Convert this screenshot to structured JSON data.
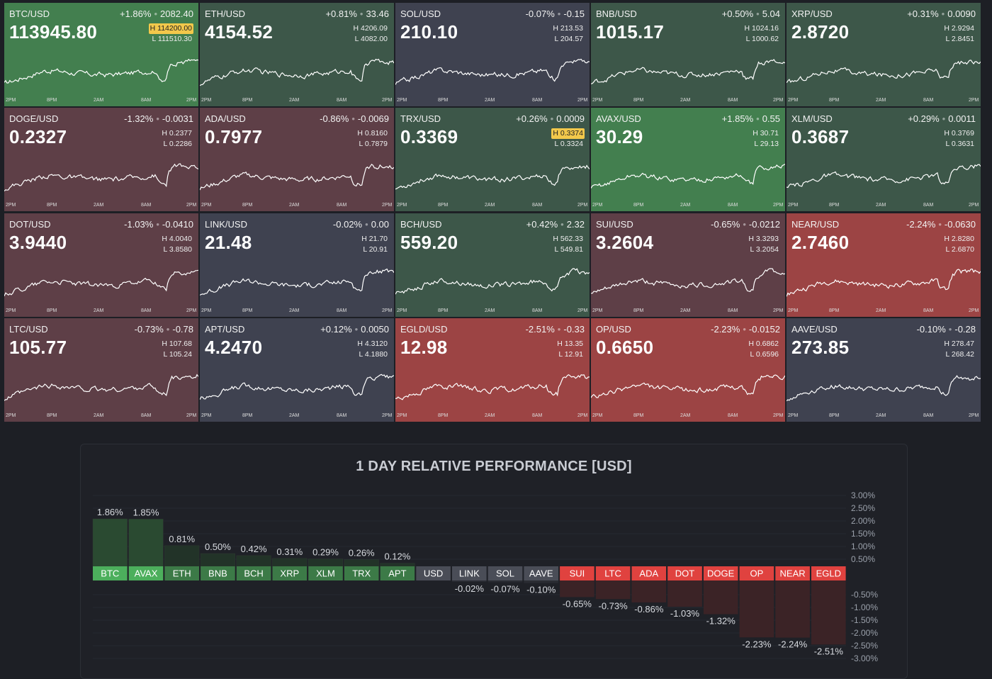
{
  "time_axis": [
    "2PM",
    "8PM",
    "2AM",
    "8AM",
    "2PM"
  ],
  "tile_colors": {
    "strong_up": "#437f4f",
    "up": "#3d5749",
    "flat": "#3f4250",
    "down": "#5e3f47",
    "strong_down": "#9c4444"
  },
  "tiles": [
    {
      "symbol": "BTC/USD",
      "pct": "+1.86%",
      "chg": "2082.40",
      "price": "113945.80",
      "high": "H 114200.00",
      "low": "L 111510.30",
      "high_hit": true,
      "tone": "strong_up"
    },
    {
      "symbol": "ETH/USD",
      "pct": "+0.81%",
      "chg": "33.46",
      "price": "4154.52",
      "high": "H 4206.09",
      "low": "L 4082.00",
      "high_hit": false,
      "tone": "up"
    },
    {
      "symbol": "SOL/USD",
      "pct": "-0.07%",
      "chg": "-0.15",
      "price": "210.10",
      "high": "H 213.53",
      "low": "L 204.57",
      "high_hit": false,
      "tone": "flat"
    },
    {
      "symbol": "BNB/USD",
      "pct": "+0.50%",
      "chg": "5.04",
      "price": "1015.17",
      "high": "H 1024.16",
      "low": "L 1000.62",
      "high_hit": false,
      "tone": "up"
    },
    {
      "symbol": "XRP/USD",
      "pct": "+0.31%",
      "chg": "0.0090",
      "price": "2.8720",
      "high": "H 2.9294",
      "low": "L 2.8451",
      "high_hit": false,
      "tone": "up"
    },
    {
      "symbol": "DOGE/USD",
      "pct": "-1.32%",
      "chg": "-0.0031",
      "price": "0.2327",
      "high": "H 0.2377",
      "low": "L 0.2286",
      "high_hit": false,
      "tone": "down"
    },
    {
      "symbol": "ADA/USD",
      "pct": "-0.86%",
      "chg": "-0.0069",
      "price": "0.7977",
      "high": "H 0.8160",
      "low": "L 0.7879",
      "high_hit": false,
      "tone": "down"
    },
    {
      "symbol": "TRX/USD",
      "pct": "+0.26%",
      "chg": "0.0009",
      "price": "0.3369",
      "high": "H 0.3374",
      "low": "L 0.3324",
      "high_hit": true,
      "tone": "up"
    },
    {
      "symbol": "AVAX/USD",
      "pct": "+1.85%",
      "chg": "0.55",
      "price": "30.29",
      "high": "H 30.71",
      "low": "L 29.13",
      "high_hit": false,
      "tone": "strong_up"
    },
    {
      "symbol": "XLM/USD",
      "pct": "+0.29%",
      "chg": "0.0011",
      "price": "0.3687",
      "high": "H 0.3769",
      "low": "L 0.3631",
      "high_hit": false,
      "tone": "up"
    },
    {
      "symbol": "DOT/USD",
      "pct": "-1.03%",
      "chg": "-0.0410",
      "price": "3.9440",
      "high": "H 4.0040",
      "low": "L 3.8580",
      "high_hit": false,
      "tone": "down"
    },
    {
      "symbol": "LINK/USD",
      "pct": "-0.02%",
      "chg": "0.00",
      "price": "21.48",
      "high": "H 21.70",
      "low": "L 20.91",
      "high_hit": false,
      "tone": "flat"
    },
    {
      "symbol": "BCH/USD",
      "pct": "+0.42%",
      "chg": "2.32",
      "price": "559.20",
      "high": "H 562.33",
      "low": "L 549.81",
      "high_hit": false,
      "tone": "up"
    },
    {
      "symbol": "SUI/USD",
      "pct": "-0.65%",
      "chg": "-0.0212",
      "price": "3.2604",
      "high": "H 3.3293",
      "low": "L 3.2054",
      "high_hit": false,
      "tone": "down"
    },
    {
      "symbol": "NEAR/USD",
      "pct": "-2.24%",
      "chg": "-0.0630",
      "price": "2.7460",
      "high": "H 2.8280",
      "low": "L 2.6870",
      "high_hit": false,
      "tone": "strong_down"
    },
    {
      "symbol": "LTC/USD",
      "pct": "-0.73%",
      "chg": "-0.78",
      "price": "105.77",
      "high": "H 107.68",
      "low": "L 105.24",
      "high_hit": false,
      "tone": "down"
    },
    {
      "symbol": "APT/USD",
      "pct": "+0.12%",
      "chg": "0.0050",
      "price": "4.2470",
      "high": "H 4.3120",
      "low": "L 4.1880",
      "high_hit": false,
      "tone": "flat"
    },
    {
      "symbol": "EGLD/USD",
      "pct": "-2.51%",
      "chg": "-0.33",
      "price": "12.98",
      "high": "H 13.35",
      "low": "L 12.91",
      "high_hit": false,
      "tone": "strong_down"
    },
    {
      "symbol": "OP/USD",
      "pct": "-2.23%",
      "chg": "-0.0152",
      "price": "0.6650",
      "high": "H 0.6862",
      "low": "L 0.6596",
      "high_hit": false,
      "tone": "strong_down"
    },
    {
      "symbol": "AAVE/USD",
      "pct": "-0.10%",
      "chg": "-0.28",
      "price": "273.85",
      "high": "H 278.47",
      "low": "L 268.42",
      "high_hit": false,
      "tone": "flat"
    }
  ],
  "performance": {
    "title": "1 DAY RELATIVE PERFORMANCE  [USD]",
    "colors": {
      "bright_up": "#4caf5c",
      "up": "#3c7a47",
      "flat": "#4a4d57",
      "down": "#e0423f"
    },
    "upper_ticks": [
      "3.00%",
      "2.50%",
      "2.00%",
      "1.50%",
      "1.00%",
      "0.50%"
    ],
    "lower_ticks": [
      "-0.50%",
      "-1.00%",
      "-1.50%",
      "-2.00%",
      "-2.50%",
      "-3.00%"
    ]
  },
  "chart_data": {
    "type": "bar",
    "title": "1 DAY RELATIVE PERFORMANCE  [USD]",
    "categories": [
      "BTC",
      "AVAX",
      "ETH",
      "BNB",
      "BCH",
      "XRP",
      "XLM",
      "TRX",
      "APT",
      "USD",
      "LINK",
      "SOL",
      "AAVE",
      "SUI",
      "LTC",
      "ADA",
      "DOT",
      "DOGE",
      "OP",
      "NEAR",
      "EGLD"
    ],
    "values": [
      1.86,
      1.85,
      0.81,
      0.5,
      0.42,
      0.31,
      0.29,
      0.26,
      0.12,
      0.0,
      -0.02,
      -0.07,
      -0.1,
      -0.65,
      -0.73,
      -0.86,
      -1.03,
      -1.32,
      -2.23,
      -2.24,
      -2.51
    ],
    "value_labels": [
      "1.86%",
      "1.85%",
      "0.81%",
      "0.50%",
      "0.42%",
      "0.31%",
      "0.29%",
      "0.26%",
      "0.12%",
      "",
      "-0.02%",
      "-0.07%",
      "-0.10%",
      "-0.65%",
      "-0.73%",
      "-0.86%",
      "-1.03%",
      "-1.32%",
      "-2.23%",
      "-2.24%",
      "-2.51%"
    ],
    "ylim": [
      -3.0,
      3.0
    ],
    "grid": true,
    "legend": "none"
  }
}
